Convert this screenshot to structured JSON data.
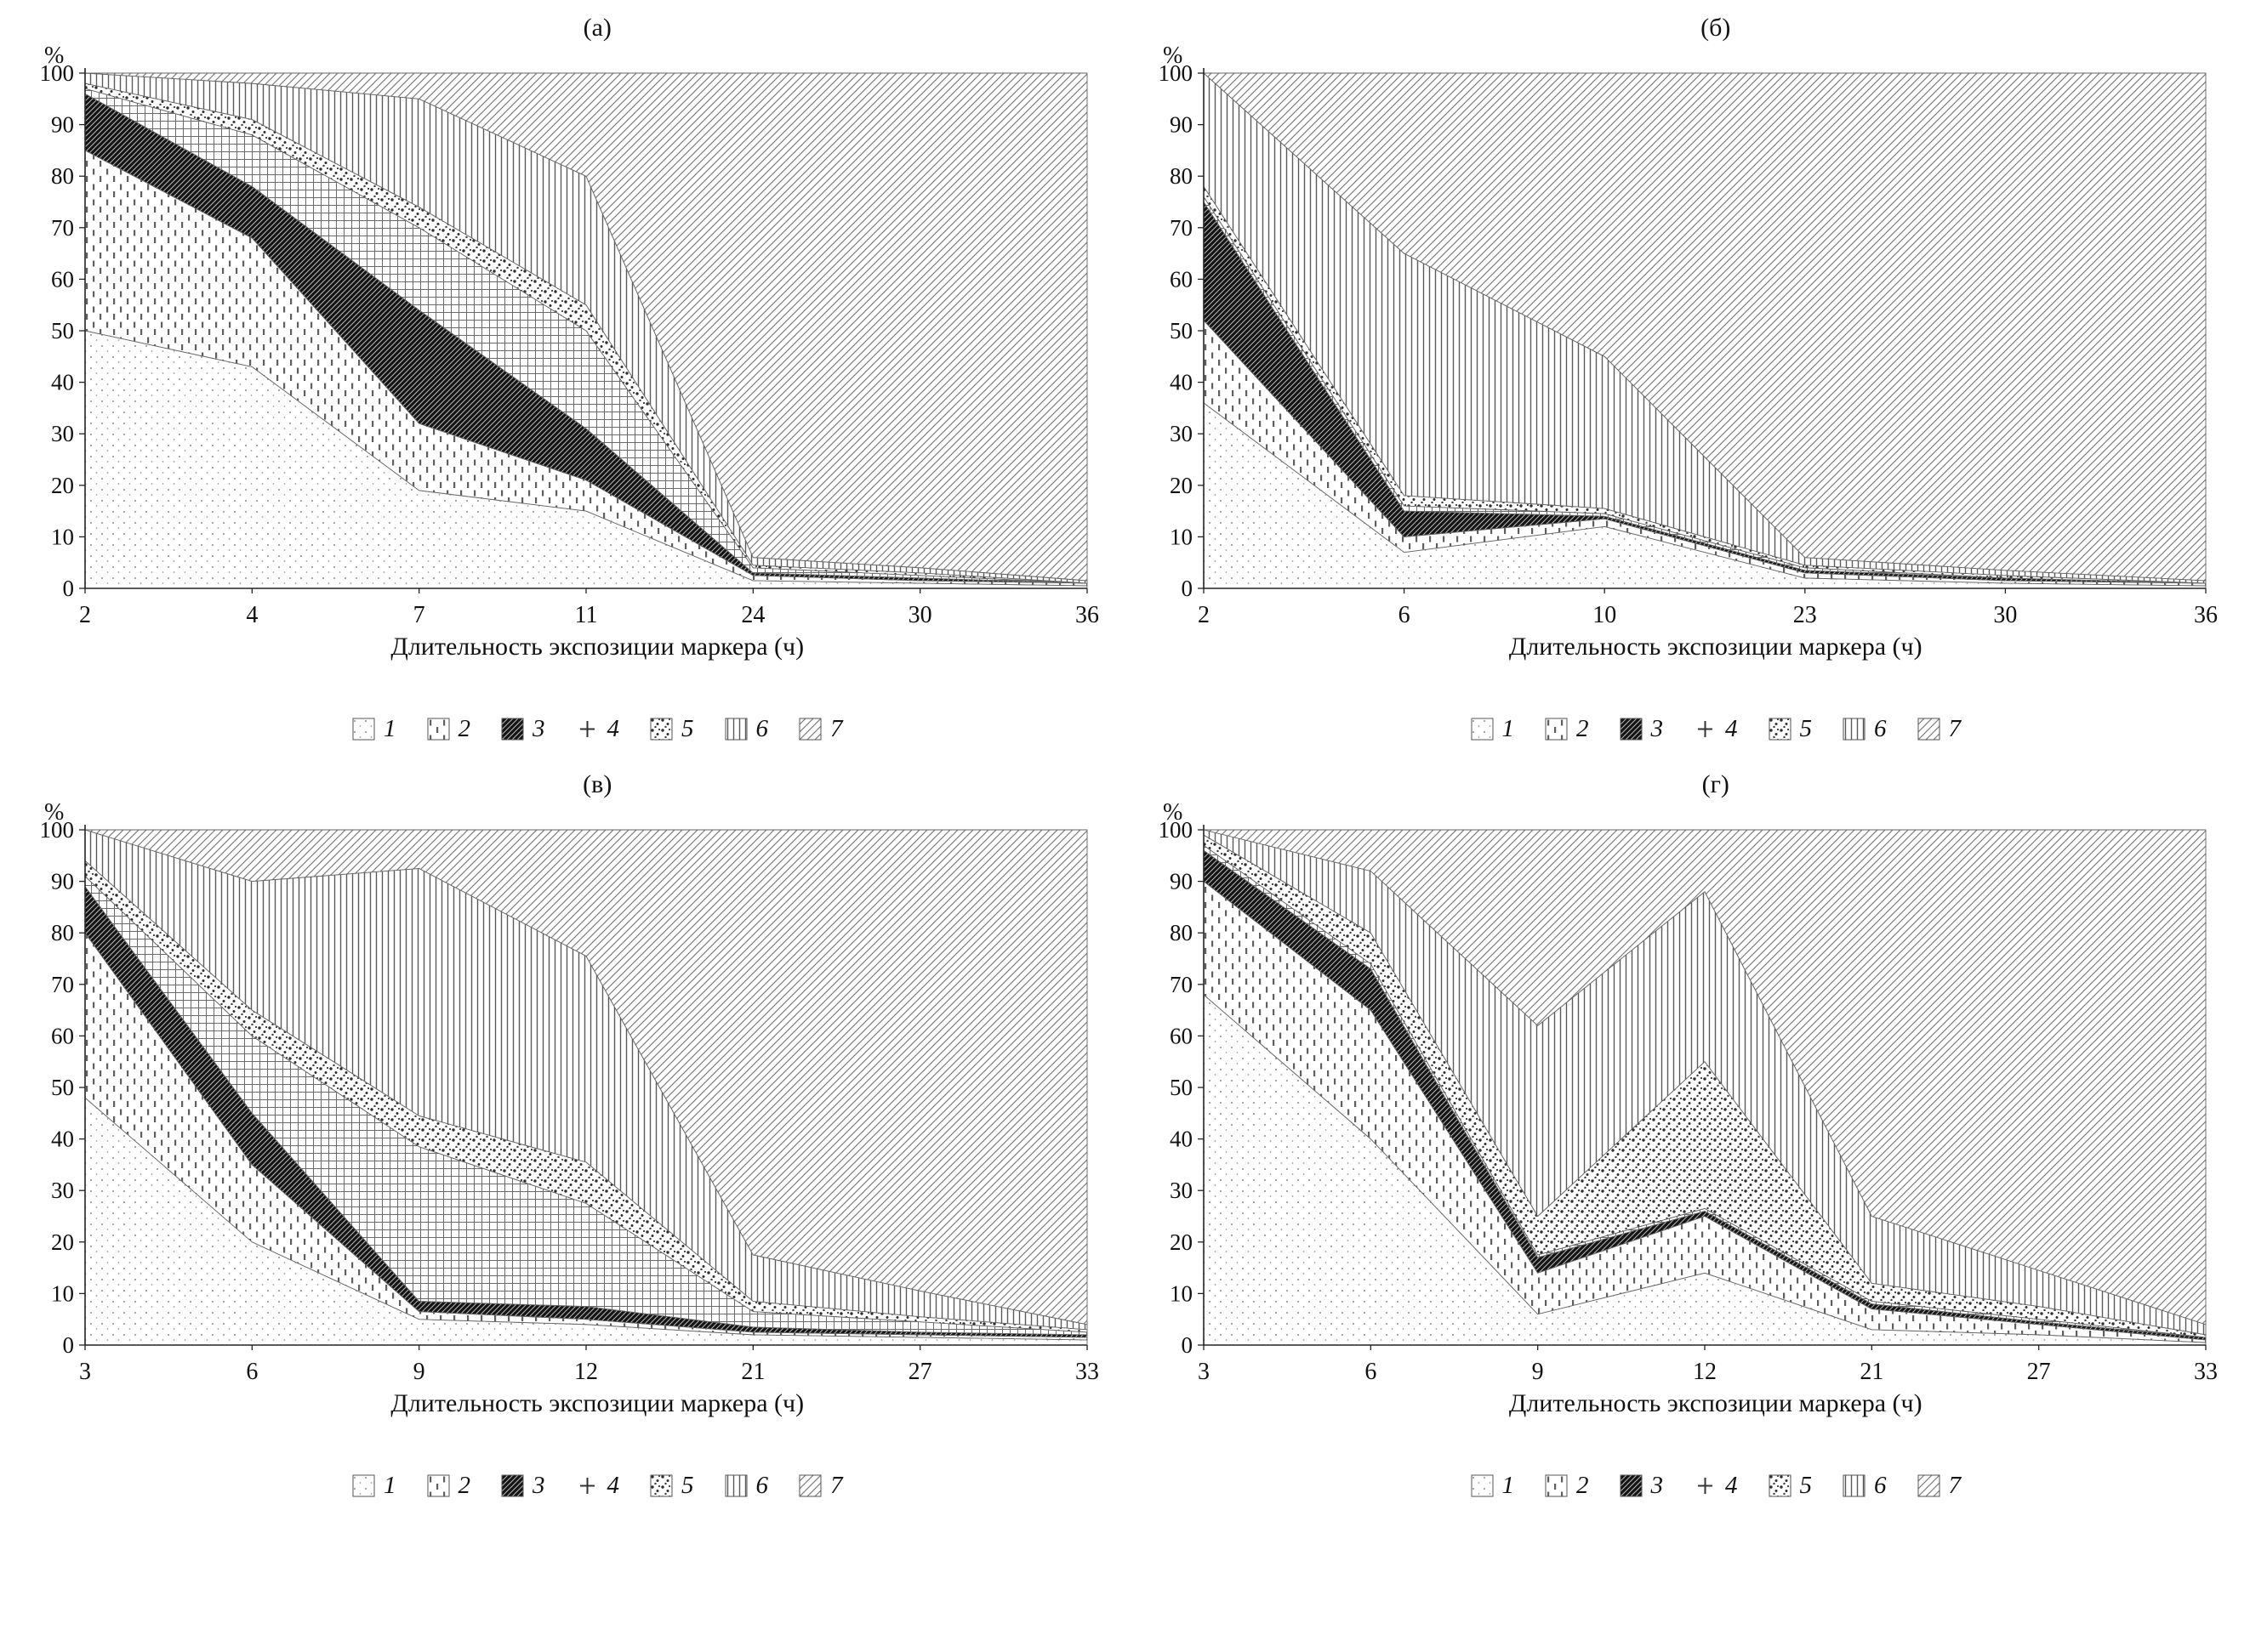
{
  "figure": {
    "background": "#ffffff",
    "axis_color": "#222222",
    "boundary_color": "#666666"
  },
  "chart_data": [
    {
      "panel": "a",
      "title": "(а)",
      "type": "area",
      "stacked": true,
      "percent": true,
      "xlabel": "Длительность экспозиции маркера (ч)",
      "ylabel": "%",
      "ylim": [
        0,
        100
      ],
      "yticks": [
        0,
        10,
        20,
        30,
        40,
        50,
        60,
        70,
        80,
        90,
        100
      ],
      "grid": false,
      "legend_position": "bottom",
      "categories": [
        "2",
        "4",
        "7",
        "11",
        "24",
        "30",
        "36"
      ],
      "series": [
        {
          "name": "1",
          "pattern": "dots",
          "values": [
            50,
            43,
            19,
            15,
            1.5,
            1,
            0.5
          ]
        },
        {
          "name": "2",
          "pattern": "dashes",
          "values": [
            35,
            25,
            13,
            6,
            1,
            0.5,
            0.5
          ]
        },
        {
          "name": "3",
          "pattern": "dark-hatch",
          "values": [
            11,
            10,
            22,
            10,
            0.5,
            0.5,
            0
          ]
        },
        {
          "name": "4",
          "pattern": "grid",
          "legend_swatch": "cross",
          "values": [
            1,
            10,
            16,
            19,
            1,
            0.5,
            0
          ]
        },
        {
          "name": "5",
          "pattern": "pebbles",
          "values": [
            1,
            3,
            4,
            5,
            0.5,
            0.5,
            0
          ]
        },
        {
          "name": "6",
          "pattern": "vertical-lines",
          "values": [
            2,
            7,
            21,
            25,
            1.5,
            1,
            0.5
          ]
        },
        {
          "name": "7",
          "pattern": "diagonal-hatch",
          "values": [
            0,
            2,
            5,
            20,
            94,
            96,
            98.5
          ]
        }
      ]
    },
    {
      "panel": "b",
      "title": "(б)",
      "type": "area",
      "stacked": true,
      "percent": true,
      "xlabel": "Длительность экспозиции маркера (ч)",
      "ylabel": "%",
      "ylim": [
        0,
        100
      ],
      "yticks": [
        0,
        10,
        20,
        30,
        40,
        50,
        60,
        70,
        80,
        90,
        100
      ],
      "grid": false,
      "legend_position": "bottom",
      "categories": [
        "2",
        "6",
        "10",
        "23",
        "30",
        "36"
      ],
      "series": [
        {
          "name": "1",
          "pattern": "dots",
          "values": [
            36,
            7,
            12,
            2,
            1,
            0.5
          ]
        },
        {
          "name": "2",
          "pattern": "dashes",
          "values": [
            16,
            3,
            1.5,
            1,
            0.5,
            0.5
          ]
        },
        {
          "name": "3",
          "pattern": "dark-hatch",
          "values": [
            23,
            5,
            0.5,
            0.5,
            0.5,
            0
          ]
        },
        {
          "name": "4",
          "pattern": "grid",
          "legend_swatch": "cross",
          "values": [
            1,
            1,
            0.5,
            0.5,
            0,
            0
          ]
        },
        {
          "name": "5",
          "pattern": "pebbles",
          "values": [
            2,
            2,
            1,
            0.5,
            0.5,
            0
          ]
        },
        {
          "name": "6",
          "pattern": "vertical-lines",
          "values": [
            22,
            47,
            29.5,
            1.5,
            1,
            0.5
          ]
        },
        {
          "name": "7",
          "pattern": "diagonal-hatch",
          "values": [
            0,
            35,
            55,
            94,
            96.5,
            98.5
          ]
        }
      ]
    },
    {
      "panel": "v",
      "title": "(в)",
      "type": "area",
      "stacked": true,
      "percent": true,
      "xlabel": "Длительность экспозиции маркера (ч)",
      "ylabel": "%",
      "ylim": [
        0,
        100
      ],
      "yticks": [
        0,
        10,
        20,
        30,
        40,
        50,
        60,
        70,
        80,
        90,
        100
      ],
      "grid": false,
      "legend_position": "bottom",
      "categories": [
        "3",
        "6",
        "9",
        "12",
        "21",
        "27",
        "33"
      ],
      "series": [
        {
          "name": "1",
          "pattern": "dots",
          "values": [
            48,
            20,
            5,
            4,
            2,
            1.5,
            1
          ]
        },
        {
          "name": "2",
          "pattern": "dashes",
          "values": [
            32,
            15,
            1.5,
            1,
            0.5,
            0.5,
            0.5
          ]
        },
        {
          "name": "3",
          "pattern": "dark-hatch",
          "values": [
            9,
            10,
            2,
            2.5,
            1,
            0.5,
            0.5
          ]
        },
        {
          "name": "4",
          "pattern": "grid",
          "legend_swatch": "cross",
          "values": [
            2,
            15,
            30,
            20,
            3,
            2,
            0.5
          ]
        },
        {
          "name": "5",
          "pattern": "pebbles",
          "values": [
            3,
            5,
            6,
            8,
            2,
            1,
            0.5
          ]
        },
        {
          "name": "6",
          "pattern": "vertical-lines",
          "values": [
            6,
            25,
            48,
            40,
            9,
            5,
            1
          ]
        },
        {
          "name": "7",
          "pattern": "diagonal-hatch",
          "values": [
            0,
            10,
            7.5,
            24.5,
            82.5,
            89.5,
            96
          ]
        }
      ]
    },
    {
      "panel": "g",
      "title": "(г)",
      "type": "area",
      "stacked": true,
      "percent": true,
      "xlabel": "Длительность экспозиции маркера (ч)",
      "ylabel": "%",
      "ylim": [
        0,
        100
      ],
      "yticks": [
        0,
        10,
        20,
        30,
        40,
        50,
        60,
        70,
        80,
        90,
        100
      ],
      "grid": false,
      "legend_position": "bottom",
      "categories": [
        "3",
        "6",
        "9",
        "12",
        "21",
        "27",
        "33"
      ],
      "series": [
        {
          "name": "1",
          "pattern": "dots",
          "values": [
            68,
            40,
            6,
            14,
            3,
            2,
            0.5
          ]
        },
        {
          "name": "2",
          "pattern": "dashes",
          "values": [
            22,
            25,
            8,
            11,
            4,
            2,
            0.5
          ]
        },
        {
          "name": "3",
          "pattern": "dark-hatch",
          "values": [
            6,
            8,
            3,
            1,
            1,
            0.5,
            0.5
          ]
        },
        {
          "name": "4",
          "pattern": "grid",
          "legend_swatch": "cross",
          "values": [
            1,
            1,
            0.5,
            0.5,
            0.5,
            0.5,
            0
          ]
        },
        {
          "name": "5",
          "pattern": "pebbles",
          "values": [
            2,
            6,
            7.5,
            28.5,
            3.5,
            2.5,
            0.5
          ]
        },
        {
          "name": "6",
          "pattern": "vertical-lines",
          "values": [
            1,
            12,
            37,
            33,
            13,
            7,
            2
          ]
        },
        {
          "name": "7",
          "pattern": "diagonal-hatch",
          "values": [
            0,
            8,
            38,
            12,
            75,
            85.5,
            96
          ]
        }
      ]
    }
  ]
}
